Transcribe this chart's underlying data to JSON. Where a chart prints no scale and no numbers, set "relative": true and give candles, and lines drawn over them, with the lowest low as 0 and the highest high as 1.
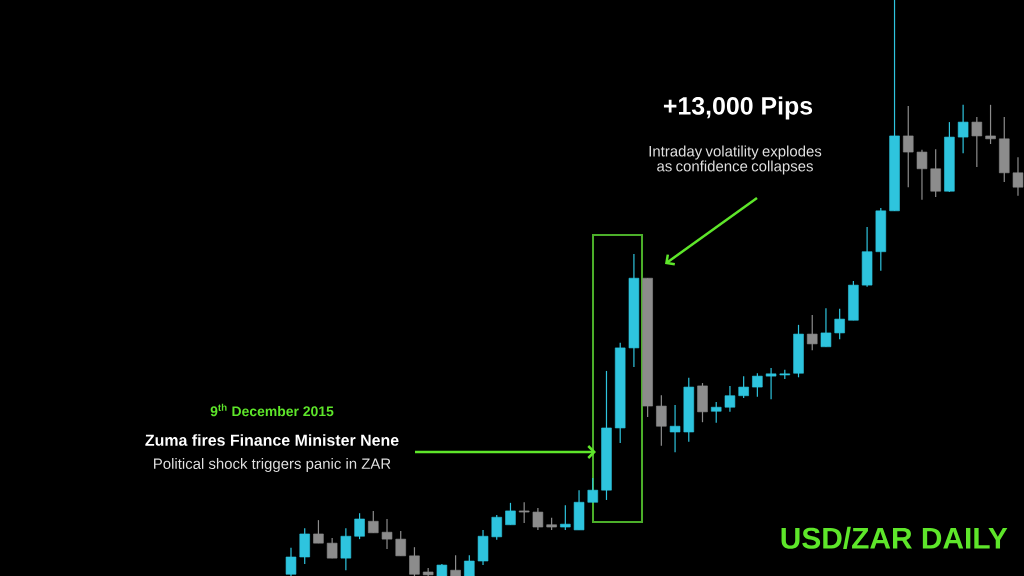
{
  "chart_data": {
    "type": "candlestick",
    "title": "USD/ZAR DAILY",
    "relative": true,
    "annotations": [
      "+13,000 Pips",
      "Intraday volatility explodes as confidence collapses",
      "9$^{th}$ December 2015",
      "Zuma fires Finance Minister Nene",
      "Political shock triggers panic in ZAR"
    ],
    "categories": [
      null,
      null,
      null,
      null,
      null,
      null,
      null,
      null,
      null,
      null,
      null,
      null,
      null,
      null,
      null,
      null,
      null,
      null,
      null,
      null,
      null,
      null,
      null,
      null,
      null,
      null,
      null,
      null,
      null,
      null,
      null,
      null,
      null,
      null,
      null,
      null,
      null,
      null,
      null,
      null,
      null,
      null,
      null,
      null,
      null,
      null,
      null,
      null,
      null,
      null,
      null,
      null,
      null,
      null
    ],
    "ohlc": [
      [
        0.003,
        0.049,
        0,
        0.033
      ],
      [
        0.033,
        0.083,
        0.021,
        0.073
      ],
      [
        0.073,
        0.097,
        0.057,
        0.057
      ],
      [
        0.057,
        0.066,
        0.031,
        0.031
      ],
      [
        0.031,
        0.083,
        0.01,
        0.069
      ],
      [
        0.069,
        0.109,
        0.064,
        0.099
      ],
      [
        0.095,
        0.113,
        0.075,
        0.075
      ],
      [
        0.076,
        0.099,
        0.047,
        0.064
      ],
      [
        0.064,
        0.078,
        0.035,
        0.035
      ],
      [
        0.035,
        0.05,
        0,
        0.003
      ],
      [
        0.007,
        0.014,
        0,
        0.002
      ],
      [
        0,
        0.021,
        0,
        0.019
      ],
      [
        0.01,
        0.036,
        0,
        0
      ],
      [
        0,
        0.036,
        0,
        0.026
      ],
      [
        0.026,
        0.08,
        0.019,
        0.069
      ],
      [
        0.068,
        0.106,
        0.063,
        0.102
      ],
      [
        0.089,
        0.127,
        0.089,
        0.113
      ],
      [
        0.113,
        0.128,
        0.092,
        0.111
      ],
      [
        0.111,
        0.118,
        0.08,
        0.085
      ],
      [
        0.089,
        0.101,
        0.08,
        0.085
      ],
      [
        0.085,
        0.123,
        0.08,
        0.09
      ],
      [
        0.08,
        0.149,
        0.08,
        0.128
      ],
      [
        0.128,
        0.17,
        0.128,
        0.149
      ],
      [
        0.149,
        0.356,
        0.132,
        0.257
      ],
      [
        0.257,
        0.405,
        0.231,
        0.396
      ],
      [
        0.396,
        0.559,
        0.363,
        0.517
      ],
      [
        0.517,
        0.517,
        0.276,
        0.295
      ],
      [
        0.295,
        0.314,
        0.226,
        0.26
      ],
      [
        0.25,
        0.297,
        0.215,
        0.26
      ],
      [
        0.25,
        0.344,
        0.233,
        0.328
      ],
      [
        0.33,
        0.335,
        0.267,
        0.285
      ],
      [
        0.286,
        0.302,
        0.266,
        0.293
      ],
      [
        0.293,
        0.33,
        0.285,
        0.313
      ],
      [
        0.313,
        0.347,
        0.309,
        0.328
      ],
      [
        0.328,
        0.352,
        0.311,
        0.347
      ],
      [
        0.347,
        0.361,
        0.307,
        0.351
      ],
      [
        0.349,
        0.358,
        0.342,
        0.351
      ],
      [
        0.352,
        0.436,
        0.345,
        0.42
      ],
      [
        0.42,
        0.453,
        0.392,
        0.403
      ],
      [
        0.398,
        0.465,
        0.398,
        0.422
      ],
      [
        0.422,
        0.464,
        0.411,
        0.446
      ],
      [
        0.444,
        0.512,
        0.444,
        0.505
      ],
      [
        0.505,
        0.606,
        0.502,
        0.563
      ],
      [
        0.563,
        0.639,
        0.53,
        0.634
      ],
      [
        0.634,
        1,
        0.634,
        0.764
      ],
      [
        0.764,
        0.816,
        0.675,
        0.736
      ],
      [
        0.736,
        0.74,
        0.653,
        0.707
      ],
      [
        0.707,
        0.741,
        0.658,
        0.668
      ],
      [
        0.668,
        0.788,
        0.667,
        0.762
      ],
      [
        0.762,
        0.818,
        0.734,
        0.788
      ],
      [
        0.788,
        0.797,
        0.71,
        0.764
      ],
      [
        0.764,
        0.818,
        0.75,
        0.759
      ],
      [
        0.759,
        0.797,
        0.684,
        0.7
      ],
      [
        0.7,
        0.727,
        0.66,
        0.675
      ]
    ],
    "colors": [
      "#2ec4de",
      "#2ec4de",
      "#8c8c8c",
      "#8c8c8c",
      "#2ec4de",
      "#2ec4de",
      "#8c8c8c",
      "#8c8c8c",
      "#8c8c8c",
      "#8c8c8c",
      "#8c8c8c",
      "#2ec4de",
      "#8c8c8c",
      "#2ec4de",
      "#2ec4de",
      "#2ec4de",
      "#2ec4de",
      "#8c8c8c",
      "#8c8c8c",
      "#8c8c8c",
      "#2ec4de",
      "#2ec4de",
      "#2ec4de",
      "#2ec4de",
      "#2ec4de",
      "#2ec4de",
      "#8c8c8c",
      "#8c8c8c",
      "#2ec4de",
      "#2ec4de",
      "#8c8c8c",
      "#2ec4de",
      "#2ec4de",
      "#2ec4de",
      "#2ec4de",
      "#2ec4de",
      "#2ec4de",
      "#2ec4de",
      "#8c8c8c",
      "#2ec4de",
      "#2ec4de",
      "#2ec4de",
      "#2ec4de",
      "#2ec4de",
      "#2ec4de",
      "#8c8c8c",
      "#8c8c8c",
      "#8c8c8c",
      "#2ec4de",
      "#2ec4de",
      "#8c8c8c",
      "#8c8c8c",
      "#8c8c8c",
      "#8c8c8c"
    ]
  }
}
